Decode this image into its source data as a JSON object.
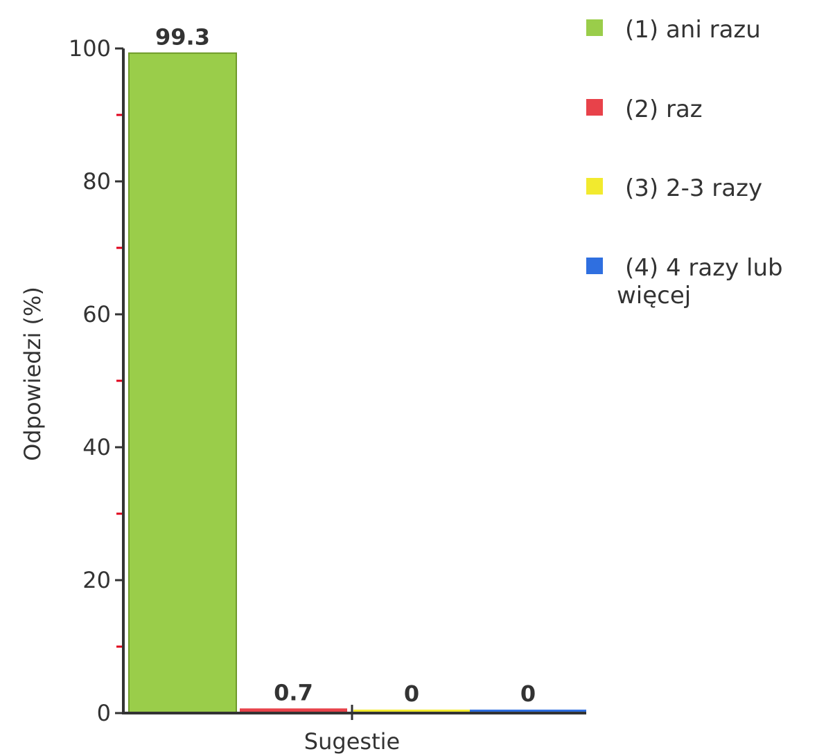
{
  "chart_data": {
    "type": "bar",
    "xlabel": "Sugestie",
    "ylabel": "Odpowiedzi (%)",
    "ylim": [
      0,
      100
    ],
    "yticks": [
      "0",
      "20",
      "40",
      "60",
      "80",
      "100"
    ],
    "minor_tick_step": 10,
    "grid": false,
    "legend_position": "right",
    "series": [
      {
        "name": "(1) ani razu",
        "value": 99.3,
        "label": "99.3",
        "color": "#9acd4a"
      },
      {
        "name": "(2) raz",
        "value": 0.7,
        "label": "0.7",
        "color": "#e8424a"
      },
      {
        "name": "(3) 2-3 razy",
        "value": 0,
        "label": "0",
        "color": "#f2ea2e"
      },
      {
        "name": "(4) 4 razy lub więcej",
        "value": 0,
        "label": "0",
        "color": "#2f6fe0"
      }
    ],
    "colors": {
      "axis": "#333333",
      "minor_tick": "#e0001b",
      "bar_border": "#6f9a2a"
    }
  }
}
